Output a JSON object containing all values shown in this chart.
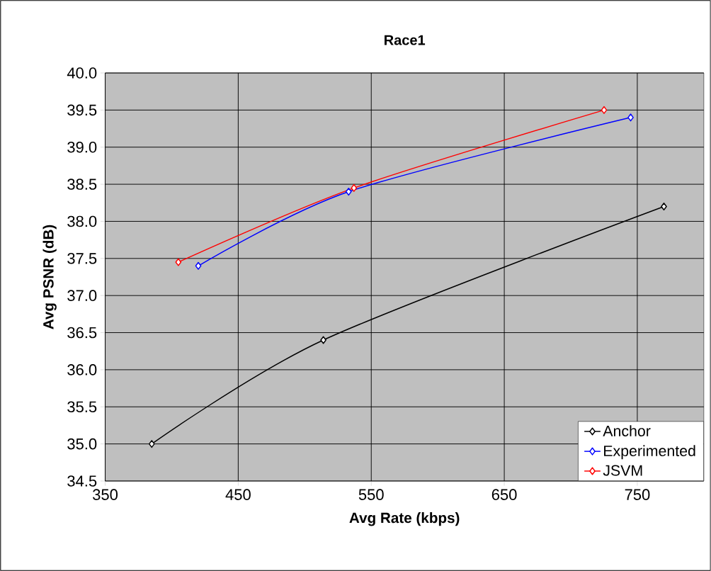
{
  "chart_data": {
    "type": "line",
    "title": "Race1",
    "xlabel": "Avg Rate (kbps)",
    "ylabel": "Avg PSNR (dB)",
    "xlim": [
      350,
      800
    ],
    "xticks": [
      350,
      450,
      550,
      650,
      750
    ],
    "ylim": [
      34.5,
      40.0
    ],
    "yticks": [
      {
        "value": 34.5,
        "label": "34.5"
      },
      {
        "value": 35.0,
        "label": "35.0"
      },
      {
        "value": 35.5,
        "label": "35.5"
      },
      {
        "value": 36.0,
        "label": "36.0"
      },
      {
        "value": 36.5,
        "label": "36.5"
      },
      {
        "value": 37.0,
        "label": "37.0"
      },
      {
        "value": 37.5,
        "label": "37.5"
      },
      {
        "value": 38.0,
        "label": "38.0"
      },
      {
        "value": 38.5,
        "label": "38.5"
      },
      {
        "value": 39.0,
        "label": "39.0"
      },
      {
        "value": 39.5,
        "label": "39.5"
      },
      {
        "value": 40.0,
        "label": "40.0"
      }
    ],
    "grid": true,
    "legend": "bottom right",
    "marker": "diamond",
    "line_style": "solid",
    "series": [
      {
        "name": "Anchor",
        "color": "#000000",
        "x": [
          385,
          514,
          770
        ],
        "values": [
          35.0,
          36.4,
          38.2
        ]
      },
      {
        "name": "Experimented",
        "color": "#0000ff",
        "x": [
          420,
          533,
          745
        ],
        "values": [
          37.4,
          38.4,
          39.4
        ]
      },
      {
        "name": "JSVM",
        "color": "#ff0000",
        "x": [
          405,
          537,
          725
        ],
        "values": [
          37.45,
          38.45,
          39.5
        ]
      }
    ]
  }
}
